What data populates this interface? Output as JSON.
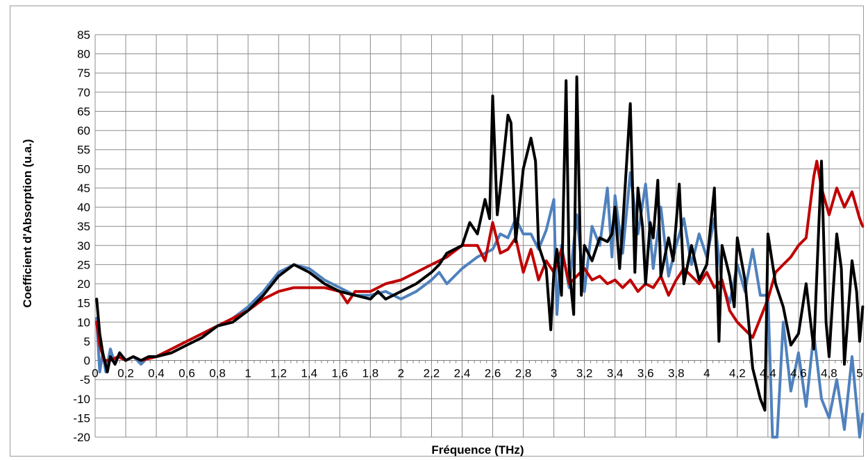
{
  "chart_data": {
    "type": "line",
    "title": "",
    "xlabel": "Fréquence (THz)",
    "ylabel": "Coefficient d'Absorption (u.a.)",
    "xlim": [
      0,
      5
    ],
    "ylim": [
      -20,
      85
    ],
    "x_ticks": [
      {
        "value": 0,
        "label": "0"
      },
      {
        "value": 0.2,
        "label": "0,2"
      },
      {
        "value": 0.4,
        "label": "0,4"
      },
      {
        "value": 0.6,
        "label": "0,6"
      },
      {
        "value": 0.8,
        "label": "0,8"
      },
      {
        "value": 1,
        "label": "1"
      },
      {
        "value": 1.2,
        "label": "1,2"
      },
      {
        "value": 1.4,
        "label": "1,4"
      },
      {
        "value": 1.6,
        "label": "1,6"
      },
      {
        "value": 1.8,
        "label": "1,8"
      },
      {
        "value": 2,
        "label": "2"
      },
      {
        "value": 2.2,
        "label": "2,2"
      },
      {
        "value": 2.4,
        "label": "2,4"
      },
      {
        "value": 2.6,
        "label": "2,6"
      },
      {
        "value": 2.8,
        "label": "2,8"
      },
      {
        "value": 3,
        "label": "3"
      },
      {
        "value": 3.2,
        "label": "3,2"
      },
      {
        "value": 3.4,
        "label": "3,4"
      },
      {
        "value": 3.6,
        "label": "3,6"
      },
      {
        "value": 3.8,
        "label": "3,8"
      },
      {
        "value": 4,
        "label": "4"
      },
      {
        "value": 4.2,
        "label": "4,2"
      },
      {
        "value": 4.4,
        "label": "4,4"
      },
      {
        "value": 4.6,
        "label": "4,6"
      },
      {
        "value": 4.8,
        "label": "4,8"
      },
      {
        "value": 5,
        "label": "5"
      }
    ],
    "y_ticks": [
      {
        "value": 85,
        "label": "85"
      },
      {
        "value": 80,
        "label": "80"
      },
      {
        "value": 75,
        "label": "75"
      },
      {
        "value": 70,
        "label": "70"
      },
      {
        "value": 65,
        "label": "65"
      },
      {
        "value": 60,
        "label": "60"
      },
      {
        "value": 55,
        "label": "55"
      },
      {
        "value": 50,
        "label": "50"
      },
      {
        "value": 45,
        "label": "45"
      },
      {
        "value": 40,
        "label": "40"
      },
      {
        "value": 35,
        "label": "35"
      },
      {
        "value": 30,
        "label": "30"
      },
      {
        "value": 25,
        "label": "25"
      },
      {
        "value": 20,
        "label": "20"
      },
      {
        "value": 15,
        "label": "15"
      },
      {
        "value": 10,
        "label": "10"
      },
      {
        "value": 5,
        "label": "5"
      },
      {
        "value": 0,
        "label": "0"
      },
      {
        "value": -5,
        "label": "-5"
      },
      {
        "value": -10,
        "label": "-10"
      },
      {
        "value": -15,
        "label": "-15"
      },
      {
        "value": -20,
        "label": "-20"
      }
    ],
    "x_minor_step": 0.04,
    "grid": true,
    "series": [
      {
        "color": "#4f81bd",
        "points": [
          [
            0.01,
            11
          ],
          [
            0.03,
            -3
          ],
          [
            0.05,
            2
          ],
          [
            0.07,
            -3
          ],
          [
            0.1,
            3
          ],
          [
            0.13,
            -1
          ],
          [
            0.16,
            2
          ],
          [
            0.2,
            0
          ],
          [
            0.25,
            1
          ],
          [
            0.3,
            -1
          ],
          [
            0.35,
            1
          ],
          [
            0.4,
            1
          ],
          [
            0.5,
            3
          ],
          [
            0.6,
            5
          ],
          [
            0.7,
            7
          ],
          [
            0.8,
            9
          ],
          [
            0.9,
            11
          ],
          [
            1.0,
            14
          ],
          [
            1.1,
            18
          ],
          [
            1.2,
            23
          ],
          [
            1.3,
            25
          ],
          [
            1.4,
            24
          ],
          [
            1.5,
            21
          ],
          [
            1.6,
            19
          ],
          [
            1.7,
            17
          ],
          [
            1.8,
            17
          ],
          [
            1.9,
            18
          ],
          [
            2.0,
            16
          ],
          [
            2.1,
            18
          ],
          [
            2.2,
            21
          ],
          [
            2.25,
            23
          ],
          [
            2.3,
            20
          ],
          [
            2.35,
            22
          ],
          [
            2.4,
            24
          ],
          [
            2.5,
            27
          ],
          [
            2.6,
            29
          ],
          [
            2.65,
            33
          ],
          [
            2.7,
            32
          ],
          [
            2.75,
            37
          ],
          [
            2.8,
            33
          ],
          [
            2.85,
            33
          ],
          [
            2.9,
            29
          ],
          [
            2.95,
            34
          ],
          [
            3.0,
            42
          ],
          [
            3.02,
            12
          ],
          [
            3.05,
            30
          ],
          [
            3.1,
            19
          ],
          [
            3.15,
            38
          ],
          [
            3.2,
            18
          ],
          [
            3.25,
            35
          ],
          [
            3.3,
            30
          ],
          [
            3.35,
            45
          ],
          [
            3.38,
            27
          ],
          [
            3.4,
            43
          ],
          [
            3.45,
            28
          ],
          [
            3.5,
            49
          ],
          [
            3.55,
            33
          ],
          [
            3.6,
            46
          ],
          [
            3.65,
            24
          ],
          [
            3.7,
            40
          ],
          [
            3.75,
            22
          ],
          [
            3.8,
            30
          ],
          [
            3.85,
            37
          ],
          [
            3.9,
            25
          ],
          [
            3.95,
            33
          ],
          [
            4.0,
            27
          ],
          [
            4.05,
            37
          ],
          [
            4.1,
            20
          ],
          [
            4.15,
            15
          ],
          [
            4.2,
            25
          ],
          [
            4.25,
            18
          ],
          [
            4.3,
            29
          ],
          [
            4.35,
            17
          ],
          [
            4.4,
            17
          ],
          [
            4.43,
            -20
          ],
          [
            4.46,
            -20
          ],
          [
            4.5,
            10
          ],
          [
            4.55,
            -8
          ],
          [
            4.6,
            2
          ],
          [
            4.65,
            -12
          ],
          [
            4.7,
            7
          ],
          [
            4.75,
            -10
          ],
          [
            4.8,
            -15
          ],
          [
            4.85,
            -5
          ],
          [
            4.9,
            -18
          ],
          [
            4.95,
            1
          ],
          [
            5.0,
            -20
          ],
          [
            5.02,
            -14
          ]
        ]
      },
      {
        "color": "#c00000",
        "points": [
          [
            0.01,
            10
          ],
          [
            0.03,
            4
          ],
          [
            0.06,
            0
          ],
          [
            0.1,
            0
          ],
          [
            0.15,
            1
          ],
          [
            0.2,
            0
          ],
          [
            0.25,
            1
          ],
          [
            0.3,
            0
          ],
          [
            0.4,
            1
          ],
          [
            0.5,
            3
          ],
          [
            0.6,
            5
          ],
          [
            0.7,
            7
          ],
          [
            0.8,
            9
          ],
          [
            0.9,
            11
          ],
          [
            1.0,
            13
          ],
          [
            1.1,
            16
          ],
          [
            1.2,
            18
          ],
          [
            1.3,
            19
          ],
          [
            1.4,
            19
          ],
          [
            1.5,
            19
          ],
          [
            1.6,
            18
          ],
          [
            1.65,
            15
          ],
          [
            1.7,
            18
          ],
          [
            1.8,
            18
          ],
          [
            1.9,
            20
          ],
          [
            2.0,
            21
          ],
          [
            2.1,
            23
          ],
          [
            2.2,
            25
          ],
          [
            2.3,
            27
          ],
          [
            2.4,
            30
          ],
          [
            2.5,
            30
          ],
          [
            2.55,
            26
          ],
          [
            2.6,
            36
          ],
          [
            2.65,
            28
          ],
          [
            2.7,
            29
          ],
          [
            2.75,
            32
          ],
          [
            2.8,
            23
          ],
          [
            2.85,
            29
          ],
          [
            2.9,
            21
          ],
          [
            2.95,
            26
          ],
          [
            3.0,
            23
          ],
          [
            3.05,
            29
          ],
          [
            3.1,
            20
          ],
          [
            3.15,
            22
          ],
          [
            3.2,
            24
          ],
          [
            3.25,
            21
          ],
          [
            3.3,
            22
          ],
          [
            3.35,
            20
          ],
          [
            3.4,
            21
          ],
          [
            3.45,
            19
          ],
          [
            3.5,
            21
          ],
          [
            3.55,
            18
          ],
          [
            3.6,
            20
          ],
          [
            3.65,
            19
          ],
          [
            3.7,
            22
          ],
          [
            3.75,
            17
          ],
          [
            3.8,
            21
          ],
          [
            3.85,
            24
          ],
          [
            3.9,
            22
          ],
          [
            3.95,
            20
          ],
          [
            4.0,
            23
          ],
          [
            4.05,
            19
          ],
          [
            4.1,
            21
          ],
          [
            4.15,
            13
          ],
          [
            4.2,
            10
          ],
          [
            4.25,
            8
          ],
          [
            4.3,
            6
          ],
          [
            4.35,
            11
          ],
          [
            4.4,
            16
          ],
          [
            4.45,
            23
          ],
          [
            4.5,
            25
          ],
          [
            4.55,
            27
          ],
          [
            4.6,
            30
          ],
          [
            4.65,
            32
          ],
          [
            4.7,
            48
          ],
          [
            4.72,
            52
          ],
          [
            4.75,
            45
          ],
          [
            4.8,
            38
          ],
          [
            4.85,
            45
          ],
          [
            4.9,
            40
          ],
          [
            4.95,
            44
          ],
          [
            5.0,
            37
          ],
          [
            5.02,
            35
          ]
        ]
      },
      {
        "color": "#000000",
        "points": [
          [
            0.01,
            16
          ],
          [
            0.03,
            7
          ],
          [
            0.05,
            2
          ],
          [
            0.08,
            -3
          ],
          [
            0.1,
            1
          ],
          [
            0.13,
            -1
          ],
          [
            0.16,
            2
          ],
          [
            0.2,
            0
          ],
          [
            0.25,
            1
          ],
          [
            0.3,
            0
          ],
          [
            0.35,
            1
          ],
          [
            0.4,
            1
          ],
          [
            0.5,
            2
          ],
          [
            0.6,
            4
          ],
          [
            0.7,
            6
          ],
          [
            0.8,
            9
          ],
          [
            0.9,
            10
          ],
          [
            1.0,
            13
          ],
          [
            1.1,
            17
          ],
          [
            1.2,
            22
          ],
          [
            1.3,
            25
          ],
          [
            1.4,
            23
          ],
          [
            1.5,
            20
          ],
          [
            1.6,
            18
          ],
          [
            1.7,
            17
          ],
          [
            1.8,
            16
          ],
          [
            1.85,
            18
          ],
          [
            1.9,
            16
          ],
          [
            2.0,
            18
          ],
          [
            2.1,
            20
          ],
          [
            2.2,
            23
          ],
          [
            2.25,
            25
          ],
          [
            2.3,
            28
          ],
          [
            2.4,
            30
          ],
          [
            2.45,
            36
          ],
          [
            2.5,
            33
          ],
          [
            2.55,
            42
          ],
          [
            2.58,
            37
          ],
          [
            2.6,
            69
          ],
          [
            2.63,
            38
          ],
          [
            2.65,
            45
          ],
          [
            2.7,
            64
          ],
          [
            2.72,
            62
          ],
          [
            2.75,
            31
          ],
          [
            2.8,
            50
          ],
          [
            2.85,
            58
          ],
          [
            2.88,
            52
          ],
          [
            2.9,
            30
          ],
          [
            2.95,
            24
          ],
          [
            2.98,
            8
          ],
          [
            3.0,
            23
          ],
          [
            3.02,
            29
          ],
          [
            3.05,
            17
          ],
          [
            3.08,
            73
          ],
          [
            3.1,
            24
          ],
          [
            3.13,
            12
          ],
          [
            3.15,
            74
          ],
          [
            3.18,
            17
          ],
          [
            3.2,
            30
          ],
          [
            3.25,
            26
          ],
          [
            3.3,
            32
          ],
          [
            3.35,
            31
          ],
          [
            3.38,
            33
          ],
          [
            3.4,
            40
          ],
          [
            3.43,
            24
          ],
          [
            3.45,
            35
          ],
          [
            3.5,
            67
          ],
          [
            3.53,
            23
          ],
          [
            3.55,
            45
          ],
          [
            3.58,
            35
          ],
          [
            3.6,
            20
          ],
          [
            3.63,
            36
          ],
          [
            3.65,
            32
          ],
          [
            3.68,
            47
          ],
          [
            3.7,
            22
          ],
          [
            3.75,
            32
          ],
          [
            3.78,
            26
          ],
          [
            3.82,
            46
          ],
          [
            3.85,
            20
          ],
          [
            3.9,
            30
          ],
          [
            3.95,
            21
          ],
          [
            4.0,
            25
          ],
          [
            4.05,
            45
          ],
          [
            4.08,
            5
          ],
          [
            4.1,
            30
          ],
          [
            4.15,
            22
          ],
          [
            4.18,
            14
          ],
          [
            4.2,
            32
          ],
          [
            4.25,
            21
          ],
          [
            4.3,
            -2
          ],
          [
            4.35,
            -10
          ],
          [
            4.38,
            -13
          ],
          [
            4.4,
            33
          ],
          [
            4.45,
            20
          ],
          [
            4.5,
            14
          ],
          [
            4.55,
            4
          ],
          [
            4.6,
            7
          ],
          [
            4.65,
            20
          ],
          [
            4.7,
            3
          ],
          [
            4.75,
            52
          ],
          [
            4.78,
            10
          ],
          [
            4.8,
            1
          ],
          [
            4.85,
            33
          ],
          [
            4.88,
            24
          ],
          [
            4.9,
            -1
          ],
          [
            4.95,
            26
          ],
          [
            4.98,
            18
          ],
          [
            5.0,
            5
          ],
          [
            5.02,
            14
          ]
        ]
      }
    ]
  }
}
